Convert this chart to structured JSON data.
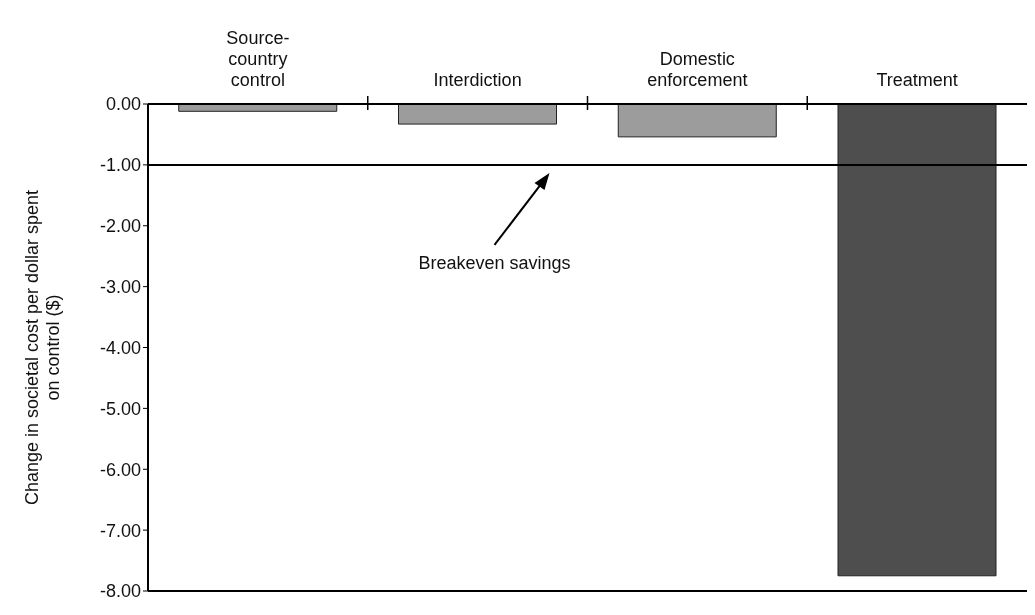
{
  "chart_data": {
    "type": "bar",
    "categories": [
      "Source-country control",
      "Interdiction",
      "Domestic enforcement",
      "Treatment"
    ],
    "values": [
      -0.12,
      -0.33,
      -0.54,
      -7.75
    ],
    "colors": [
      "#9c9c9c",
      "#9c9c9c",
      "#9c9c9c",
      "#4e4e4e"
    ],
    "ylabel": "Change in societal cost per dollar spent on control ($)",
    "ylim": [
      -8,
      0
    ],
    "yticks": [
      {
        "value": 0,
        "label": "0.00"
      },
      {
        "value": -1,
        "label": "-1.00"
      },
      {
        "value": -2,
        "label": "-2.00"
      },
      {
        "value": -3,
        "label": "-3.00"
      },
      {
        "value": -4,
        "label": "-4.00"
      },
      {
        "value": -5,
        "label": "-5.00"
      },
      {
        "value": -6,
        "label": "-6.00"
      },
      {
        "value": -7,
        "label": "-7.00"
      },
      {
        "value": -8,
        "label": "-8.00"
      }
    ],
    "ref_lines": [
      {
        "axis": "y",
        "value": -1,
        "label": "Breakeven savings",
        "color": "#000000"
      }
    ]
  }
}
